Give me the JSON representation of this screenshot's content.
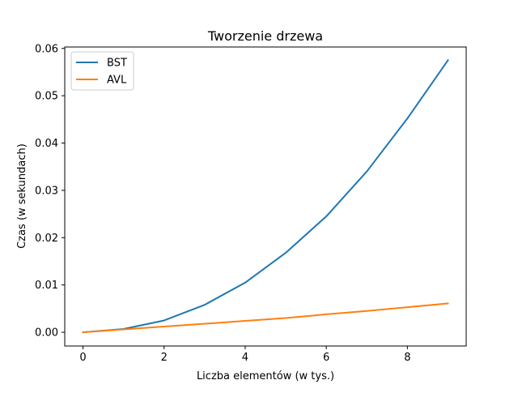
{
  "chart_data": {
    "type": "line",
    "title": "Tworzenie drzewa",
    "xlabel": "Liczba elementów (w tys.)",
    "ylabel": "Czas (w sekundach)",
    "x": [
      0,
      1,
      2,
      3,
      4,
      5,
      6,
      7,
      8,
      9
    ],
    "xlim": [
      -0.45,
      9.45
    ],
    "ylim": [
      -0.0029,
      0.0603
    ],
    "xticks": [
      0,
      2,
      4,
      6,
      8
    ],
    "xtick_labels": [
      "0",
      "2",
      "4",
      "6",
      "8"
    ],
    "yticks": [
      0.0,
      0.01,
      0.02,
      0.03,
      0.04,
      0.05,
      0.06
    ],
    "ytick_labels": [
      "0.00",
      "0.01",
      "0.02",
      "0.03",
      "0.04",
      "0.05",
      "0.06"
    ],
    "grid": false,
    "legend_position": "upper-left",
    "series": [
      {
        "name": "BST",
        "color": "#1f77b4",
        "values": [
          0.0,
          0.0007,
          0.0025,
          0.0058,
          0.0105,
          0.0168,
          0.0245,
          0.034,
          0.0452,
          0.0575
        ]
      },
      {
        "name": "AVL",
        "color": "#ff7f0e",
        "values": [
          0.0,
          0.0006,
          0.0012,
          0.0018,
          0.0024,
          0.003,
          0.0038,
          0.0045,
          0.0053,
          0.0061
        ]
      }
    ]
  }
}
